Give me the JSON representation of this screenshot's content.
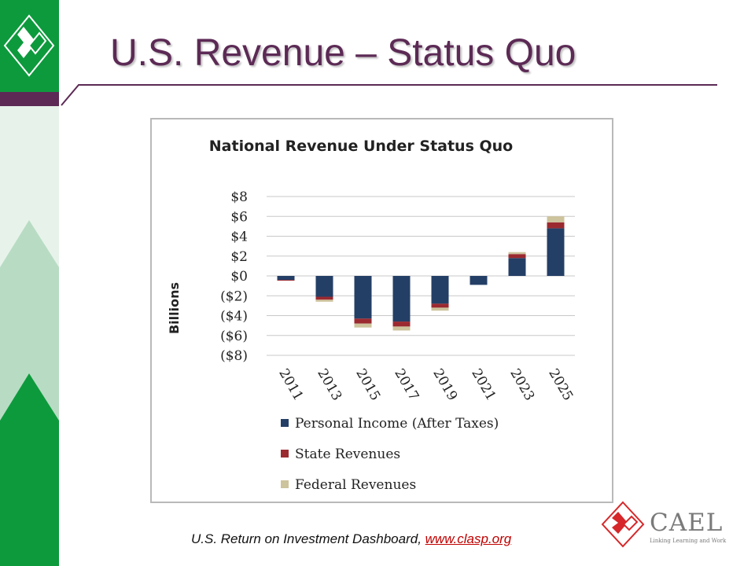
{
  "slide": {
    "title": "U.S. Revenue – Status Quo",
    "footer_text": "U.S. Return on Investment Dashboard, ",
    "footer_link": "www.clasp.org"
  },
  "branding": {
    "logo_name": "CAEL",
    "tagline": "Linking Learning and Work",
    "colors": {
      "sidebar": "#0d9a3d",
      "accent": "#5c2a55",
      "logo_red": "#d6272a"
    }
  },
  "chart_data": {
    "type": "bar",
    "stacked": true,
    "title": "National Revenue Under Status Quo",
    "ylabel": "Billions",
    "xlabel": "",
    "ylim": [
      -8,
      8
    ],
    "yticks": [
      8,
      6,
      4,
      2,
      0,
      -2,
      -4,
      -6,
      -8
    ],
    "ytick_labels": [
      "$8",
      "$6",
      "$4",
      "$2",
      "$0",
      "($2)",
      "($4)",
      "($6)",
      "($8)"
    ],
    "categories": [
      "2011",
      "2013",
      "2015",
      "2017",
      "2019",
      "2021",
      "2023",
      "2025"
    ],
    "grid": true,
    "legend_position": "bottom",
    "series": [
      {
        "name": "Personal Income (After Taxes)",
        "color": "#243f66",
        "values": [
          -0.4,
          -2.1,
          -4.3,
          -4.6,
          -2.8,
          -0.9,
          1.8,
          4.8
        ]
      },
      {
        "name": "State Revenues",
        "color": "#9b2a30",
        "values": [
          -0.05,
          -0.3,
          -0.5,
          -0.5,
          -0.4,
          0,
          0.4,
          0.6
        ]
      },
      {
        "name": "Federal Revenues",
        "color": "#cdc39c",
        "values": [
          0,
          -0.2,
          -0.4,
          -0.4,
          -0.3,
          0,
          0.2,
          0.6
        ]
      }
    ]
  }
}
